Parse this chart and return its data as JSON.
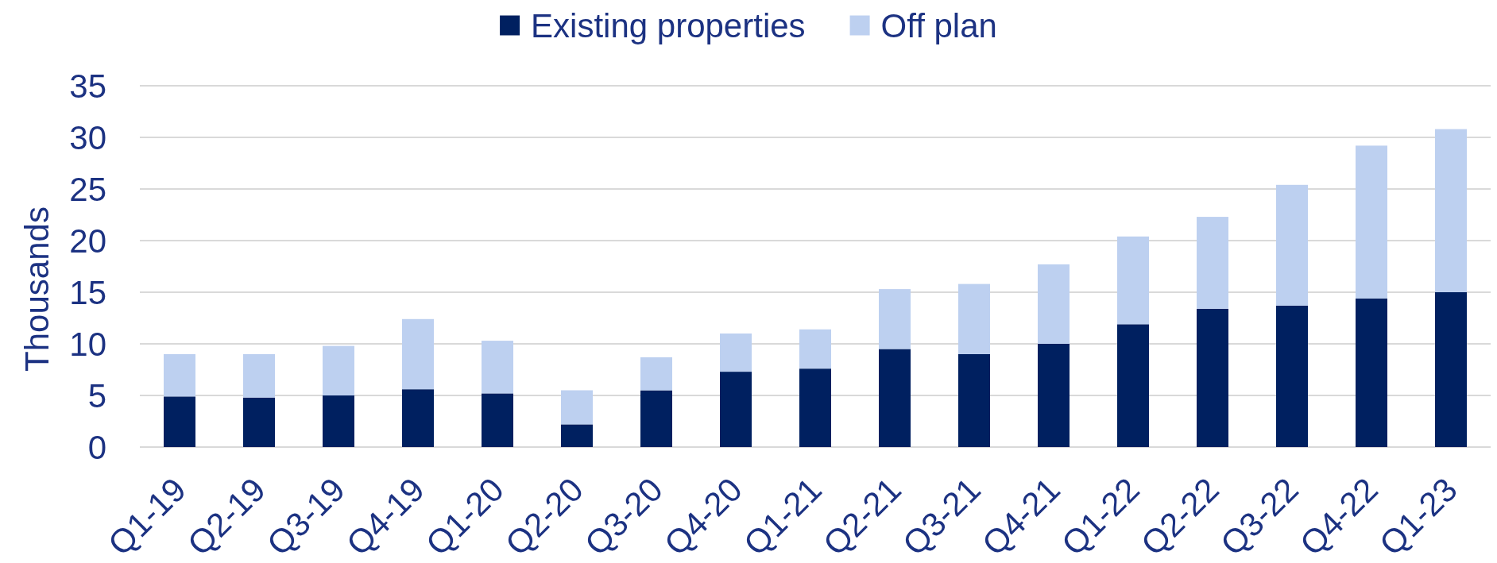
{
  "chart_data": {
    "type": "bar",
    "stacked": true,
    "ylabel": "Thousands",
    "categories": [
      "Q1-19",
      "Q2-19",
      "Q3-19",
      "Q4-19",
      "Q1-20",
      "Q2-20",
      "Q3-20",
      "Q4-20",
      "Q1-21",
      "Q2-21",
      "Q3-21",
      "Q4-21",
      "Q1-22",
      "Q2-22",
      "Q3-22",
      "Q4-22",
      "Q1-23"
    ],
    "series": [
      {
        "name": "Existing properties",
        "color": "#002060",
        "values": [
          4.9,
          4.8,
          5.0,
          5.6,
          5.2,
          2.2,
          5.5,
          7.3,
          7.6,
          9.5,
          9.0,
          10.0,
          11.9,
          13.4,
          13.7,
          14.4,
          15.0
        ]
      },
      {
        "name": "Off plan",
        "color": "#bdd0f0",
        "values": [
          4.1,
          4.2,
          4.8,
          6.8,
          5.1,
          3.3,
          3.2,
          3.7,
          3.8,
          5.8,
          6.8,
          7.7,
          8.5,
          8.9,
          11.7,
          14.8,
          15.8
        ]
      }
    ],
    "ylim": [
      0,
      35
    ],
    "yticks": [
      0,
      5,
      10,
      15,
      20,
      25,
      30,
      35
    ],
    "grid": "y",
    "legend": "top"
  }
}
